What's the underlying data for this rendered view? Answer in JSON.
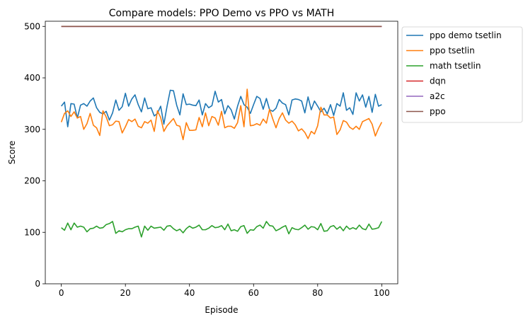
{
  "chart_data": {
    "type": "line",
    "title": "Compare models: PPO Demo vs PPO vs MATH",
    "xlabel": "Episode",
    "ylabel": "Score",
    "xlim": [
      -5,
      105
    ],
    "ylim": [
      0,
      510
    ],
    "xticks": [
      0,
      20,
      40,
      60,
      80,
      100
    ],
    "yticks": [
      0,
      100,
      200,
      300,
      400,
      500
    ],
    "grid": false,
    "legend_position": "outside-top-right",
    "series": [
      {
        "name": "ppo demo tsetlin",
        "color": "#1f77b4",
        "values": [
          345,
          353,
          305,
          350,
          349,
          322,
          347,
          350,
          345,
          355,
          361,
          342,
          333,
          330,
          335,
          318,
          332,
          357,
          337,
          344,
          370,
          345,
          359,
          367,
          348,
          334,
          361,
          340,
          342,
          326,
          331,
          345,
          310,
          345,
          376,
          375,
          347,
          328,
          369,
          348,
          349,
          347,
          346,
          357,
          328,
          350,
          342,
          346,
          374,
          353,
          358,
          330,
          346,
          338,
          320,
          345,
          364,
          348,
          343,
          331,
          348,
          364,
          360,
          339,
          360,
          338,
          335,
          341,
          358,
          351,
          348,
          328,
          357,
          359,
          358,
          355,
          332,
          363,
          338,
          355,
          345,
          334,
          341,
          330,
          348,
          327,
          350,
          345,
          371,
          337,
          342,
          329,
          371,
          355,
          367,
          343,
          364,
          333,
          368,
          345,
          348
        ]
      },
      {
        "name": "ppo tsetlin",
        "color": "#ff7f0e",
        "values": [
          314,
          331,
          336,
          325,
          334,
          322,
          325,
          300,
          311,
          331,
          308,
          303,
          288,
          336,
          324,
          307,
          309,
          316,
          315,
          293,
          305,
          319,
          315,
          320,
          306,
          303,
          315,
          312,
          318,
          296,
          336,
          323,
          296,
          307,
          314,
          321,
          308,
          306,
          280,
          313,
          298,
          298,
          299,
          323,
          305,
          332,
          307,
          325,
          322,
          308,
          335,
          303,
          306,
          306,
          302,
          313,
          346,
          305,
          378,
          307,
          308,
          311,
          308,
          320,
          312,
          339,
          320,
          303,
          321,
          332,
          318,
          312,
          316,
          309,
          297,
          301,
          294,
          282,
          296,
          291,
          307,
          343,
          328,
          328,
          322,
          324,
          290,
          299,
          317,
          314,
          304,
          300,
          306,
          300,
          315,
          318,
          321,
          310,
          287,
          302,
          314
        ]
      },
      {
        "name": "math tsetlin",
        "color": "#2ca02c",
        "values": [
          109,
          104,
          118,
          105,
          118,
          110,
          112,
          110,
          101,
          107,
          108,
          112,
          108,
          109,
          115,
          117,
          121,
          98,
          103,
          101,
          105,
          107,
          107,
          110,
          112,
          91,
          112,
          104,
          112,
          108,
          109,
          110,
          104,
          112,
          113,
          107,
          103,
          106,
          99,
          107,
          112,
          108,
          110,
          114,
          105,
          105,
          108,
          113,
          109,
          110,
          113,
          105,
          116,
          103,
          105,
          102,
          111,
          113,
          98,
          105,
          104,
          111,
          114,
          108,
          121,
          113,
          112,
          103,
          106,
          110,
          113,
          97,
          109,
          106,
          105,
          109,
          114,
          106,
          111,
          110,
          105,
          117,
          102,
          103,
          111,
          113,
          106,
          111,
          103,
          112,
          106,
          109,
          106,
          114,
          107,
          105,
          116,
          106,
          107,
          109,
          121
        ]
      },
      {
        "name": "dqn",
        "color": "#d62728",
        "values": "constant",
        "constant": 500
      },
      {
        "name": "a2c",
        "color": "#9467bd",
        "values": "constant",
        "constant": 500
      },
      {
        "name": "ppo",
        "color": "#8c564b",
        "values": "constant",
        "constant": 500
      }
    ]
  }
}
